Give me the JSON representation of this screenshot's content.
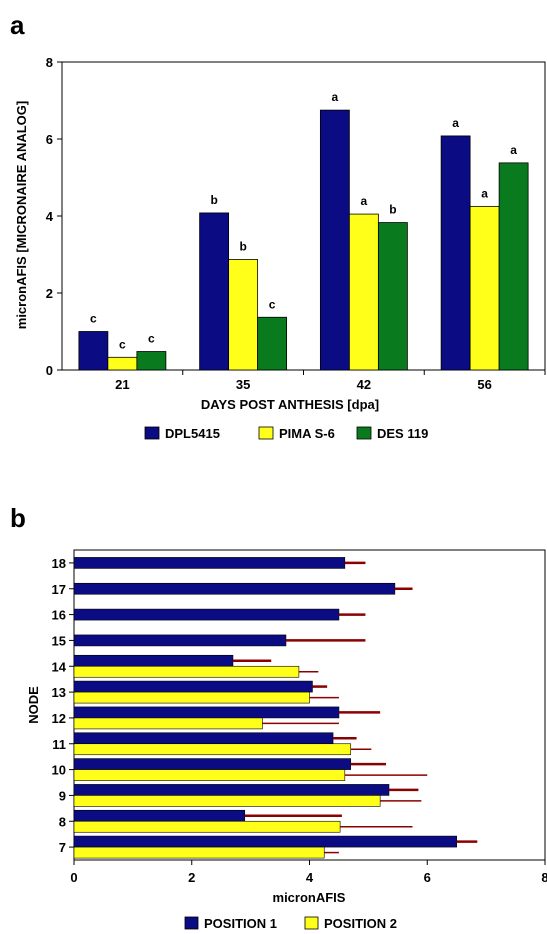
{
  "colors": {
    "navy": "#0B0B84",
    "yellow": "#FFFF1A",
    "green": "#0A7A1E",
    "errorbar": "#8B0000",
    "axis": "#000000"
  },
  "chart_data": [
    {
      "panel": "a",
      "type": "bar",
      "orientation": "vertical",
      "categories": [
        "21",
        "35",
        "42",
        "56"
      ],
      "series": [
        {
          "name": "DPL5415",
          "color": "#0B0B84",
          "values": [
            1.0,
            4.08,
            6.75,
            6.08
          ],
          "labels": [
            "c",
            "b",
            "a",
            "a"
          ]
        },
        {
          "name": "PIMA S-6",
          "color": "#FFFF1A",
          "values": [
            0.33,
            2.87,
            4.05,
            4.25
          ],
          "labels": [
            "c",
            "b",
            "a",
            "a"
          ]
        },
        {
          "name": "DES 119",
          "color": "#0A7A1E",
          "values": [
            0.48,
            1.37,
            3.83,
            5.38
          ],
          "labels": [
            "c",
            "c",
            "b",
            "a"
          ]
        }
      ],
      "xlabel": "DAYS POST ANTHESIS [dpa]",
      "ylabel": "micronAFIS [MICRONAIRE ANALOG]",
      "ylim": [
        0,
        8
      ],
      "yticks": [
        "0",
        "2",
        "4",
        "6",
        "8"
      ],
      "grid": false,
      "legend": "bottom"
    },
    {
      "panel": "b",
      "type": "bar",
      "orientation": "horizontal",
      "categories": [
        "18",
        "17",
        "16",
        "15",
        "14",
        "13",
        "12",
        "11",
        "10",
        "9",
        "8",
        "7"
      ],
      "series": [
        {
          "name": "POSITION 1",
          "color": "#0B0B84",
          "values": [
            4.6,
            5.45,
            4.5,
            3.6,
            2.7,
            4.05,
            4.5,
            4.4,
            4.7,
            5.35,
            2.9,
            6.5
          ],
          "err_hi": [
            4.95,
            5.75,
            4.95,
            4.95,
            3.35,
            4.3,
            5.2,
            4.8,
            5.3,
            5.85,
            4.55,
            6.85
          ]
        },
        {
          "name": "POSITION 2",
          "color": "#FFFF1A",
          "values": [
            null,
            null,
            null,
            null,
            3.82,
            4.0,
            3.2,
            4.7,
            4.6,
            5.2,
            4.52,
            4.25
          ],
          "err_hi": [
            null,
            null,
            null,
            null,
            4.15,
            4.5,
            4.5,
            5.05,
            6.0,
            5.9,
            5.75,
            4.5
          ]
        }
      ],
      "xlabel": "micronAFIS",
      "ylabel": "NODE",
      "xlim": [
        0,
        8
      ],
      "xticks": [
        "0",
        "2",
        "4",
        "6",
        "8"
      ],
      "grid": false,
      "legend": "bottom"
    }
  ]
}
